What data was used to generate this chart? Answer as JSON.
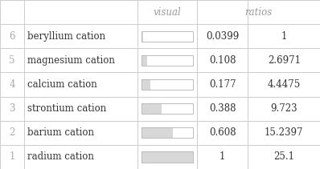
{
  "rows": [
    {
      "index": "6",
      "name": "beryllium cation",
      "value": 0.0399,
      "value_str": "0.0399",
      "ratio": "1"
    },
    {
      "index": "5",
      "name": "magnesium cation",
      "value": 0.108,
      "value_str": "0.108",
      "ratio": "2.6971"
    },
    {
      "index": "4",
      "name": "calcium cation",
      "value": 0.177,
      "value_str": "0.177",
      "ratio": "4.4475"
    },
    {
      "index": "3",
      "name": "strontium cation",
      "value": 0.388,
      "value_str": "0.388",
      "ratio": "9.723"
    },
    {
      "index": "2",
      "name": "barium cation",
      "value": 0.608,
      "value_str": "0.608",
      "ratio": "15.2397"
    },
    {
      "index": "1",
      "name": "radium cation",
      "value": 1.0,
      "value_str": "1",
      "ratio": "25.1"
    }
  ],
  "col_headers": [
    "visual",
    "ratios"
  ],
  "header_color": "#999999",
  "index_color": "#aaaaaa",
  "name_color": "#333333",
  "value_color": "#333333",
  "bg_color": "#ffffff",
  "bar_fill_color": "#d8d8d8",
  "bar_border_color": "#bbbbbb",
  "grid_line_color": "#cccccc",
  "figsize": [
    3.98,
    2.11
  ],
  "dpi": 100,
  "fontsize": 8.5,
  "header_fontsize": 8.5
}
